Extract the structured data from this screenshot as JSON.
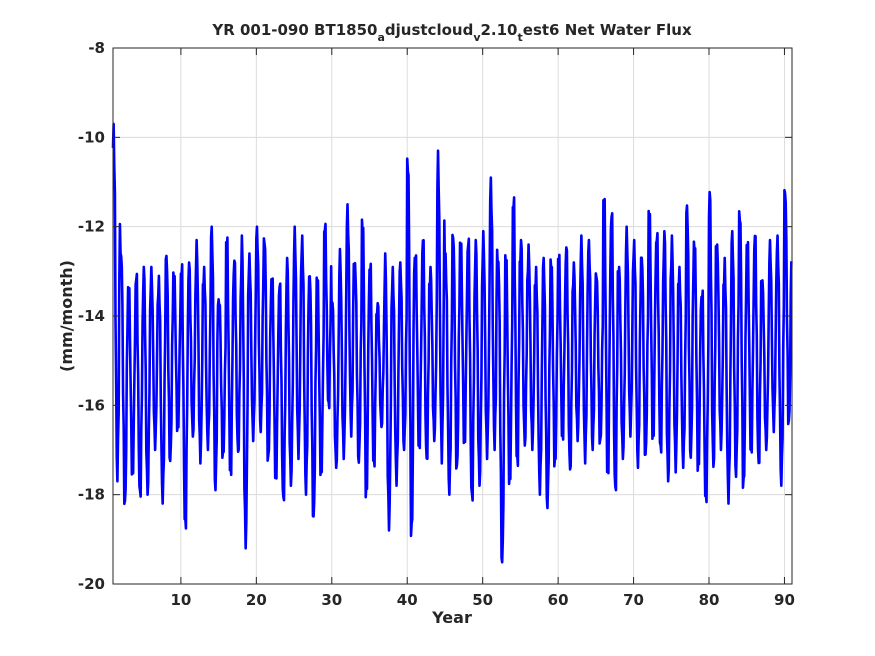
{
  "chart_data": {
    "type": "line",
    "title": {
      "prefix": "YR 001-090 BT1850",
      "sub1": "a",
      "mid1": "djustcloud",
      "sub2": "v",
      "mid2": "2.10",
      "sub3": "t",
      "suffix": "est6 Net Water Flux"
    },
    "xlabel": "Year",
    "ylabel": "(mm/month)",
    "xlim": [
      1,
      91
    ],
    "ylim": [
      -20,
      -8
    ],
    "xticks": [
      10,
      20,
      30,
      40,
      50,
      60,
      70,
      80,
      90
    ],
    "yticks": [
      -20,
      -18,
      -16,
      -14,
      -12,
      -10,
      -8
    ],
    "grid": true,
    "series": [
      {
        "color": "#0000ff",
        "seasonal_cycle": "monthly, 12 points per year",
        "annual_peak": [
          -9.7,
          -12.5,
          -13.3,
          -13.0,
          -12.9,
          -12.9,
          -13.1,
          -12.6,
          -13.0,
          -12.8,
          -12.8,
          -12.3,
          -12.9,
          -12.0,
          -13.6,
          -12.2,
          -12.7,
          -12.2,
          -12.6,
          -12.0,
          -12.2,
          -13.1,
          -13.2,
          -12.7,
          -12.0,
          -12.2,
          -13.0,
          -13.1,
          -11.9,
          -13.7,
          -12.5,
          -11.5,
          -12.8,
          -11.8,
          -12.8,
          -13.7,
          -12.6,
          -12.9,
          -12.8,
          -10.4,
          -12.6,
          -12.2,
          -12.9,
          -10.3,
          -12.6,
          -12.1,
          -12.3,
          -12.2,
          -12.3,
          -12.1,
          -10.9,
          -12.7,
          -12.6,
          -11.3,
          -12.3,
          -12.4,
          -12.9,
          -12.7,
          -12.7,
          -12.6,
          -12.4,
          -12.8,
          -12.2,
          -12.3,
          -13.0,
          -11.3,
          -11.6,
          -12.9,
          -12.0,
          -12.3,
          -12.6,
          -11.6,
          -12.1,
          -12.1,
          -12.2,
          -12.9,
          -11.5,
          -12.3,
          -13.4,
          -11.2,
          -12.4,
          -12.7,
          -12.1,
          -11.6,
          -12.3,
          -12.1,
          -13.2,
          -12.3,
          -12.2,
          -11.1
        ],
        "annual_trough": [
          -17.7,
          -18.3,
          -17.6,
          -18.1,
          -18.0,
          -17.0,
          -18.2,
          -17.3,
          -16.6,
          -18.8,
          -16.7,
          -17.3,
          -17.0,
          -17.9,
          -17.2,
          -17.6,
          -17.1,
          -19.2,
          -16.8,
          -16.6,
          -17.3,
          -17.7,
          -18.2,
          -17.8,
          -17.2,
          -18.0,
          -18.6,
          -17.6,
          -16.1,
          -17.4,
          -17.2,
          -16.7,
          -17.3,
          -18.1,
          -17.4,
          -16.5,
          -18.8,
          -17.8,
          -17.0,
          -19.0,
          -17.0,
          -17.3,
          -16.8,
          -17.3,
          -18.0,
          -17.5,
          -16.9,
          -18.2,
          -17.8,
          -17.2,
          -17.0,
          -19.6,
          -17.8,
          -17.4,
          -16.9,
          -17.0,
          -18.0,
          -18.3,
          -17.4,
          -16.8,
          -17.5,
          -16.8,
          -17.3,
          -17.0,
          -16.9,
          -17.6,
          -18.0,
          -17.2,
          -16.7,
          -17.4,
          -17.2,
          -16.8,
          -17.1,
          -17.7,
          -17.5,
          -17.4,
          -17.2,
          -17.5,
          -18.2,
          -17.4,
          -17.0,
          -18.2,
          -17.6,
          -17.9,
          -17.1,
          -17.4,
          -17.0,
          -16.6,
          -17.8,
          -16.5
        ]
      }
    ]
  }
}
